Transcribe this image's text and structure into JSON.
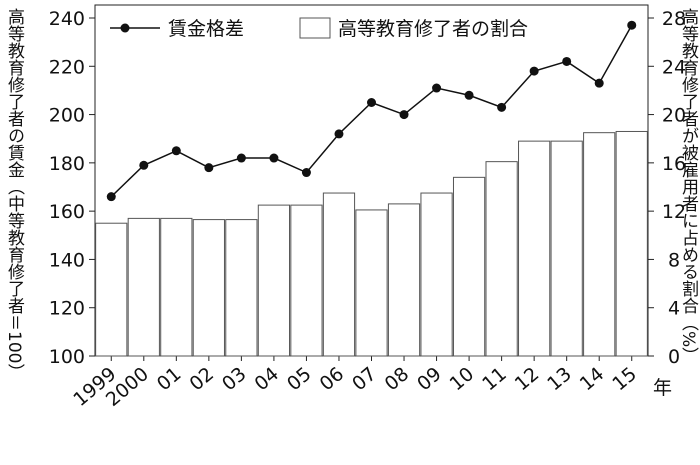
{
  "chart_data": {
    "type": "bar-line",
    "categories": [
      "1999",
      "2000",
      "01",
      "02",
      "03",
      "04",
      "05",
      "06",
      "07",
      "08",
      "09",
      "10",
      "11",
      "12",
      "13",
      "14",
      "15"
    ],
    "x_unit": "年",
    "y_label": "高等教育修了者の賃金（中等教育修了者＝100）",
    "y2_label": "高等教育修了者が被雇用者に占める割合（%）",
    "ylim": [
      100,
      240
    ],
    "yticks": [
      100,
      120,
      140,
      160,
      180,
      200,
      220,
      240
    ],
    "y2lim": [
      0,
      28
    ],
    "y2ticks": [
      0,
      4,
      8,
      12,
      16,
      20,
      24,
      28
    ],
    "series": [
      {
        "name": "賃金格差",
        "type": "line",
        "color": "#111111",
        "values": [
          166,
          179,
          185,
          178,
          182,
          182,
          176,
          192,
          205,
          200,
          211,
          208,
          203,
          218,
          222,
          213,
          237
        ]
      },
      {
        "name": "高等教育修了者の割合",
        "type": "bar",
        "axis": "y2",
        "color": "#ffffff",
        "values": [
          11,
          11.4,
          11.4,
          11.3,
          11.3,
          12.5,
          12.5,
          13.5,
          12.1,
          12.6,
          13.5,
          14.8,
          16.1,
          17.8,
          17.8,
          18.5,
          18.6
        ]
      }
    ]
  }
}
